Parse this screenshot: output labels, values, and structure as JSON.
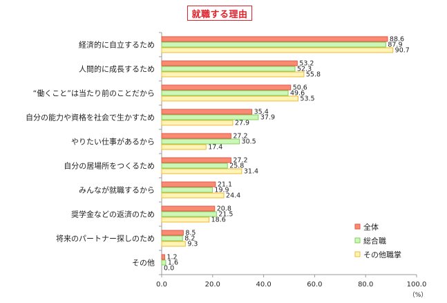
{
  "chart_data": {
    "type": "bar",
    "orientation": "horizontal",
    "title": "就職する理由",
    "categories": [
      "経済的に自立するため",
      "人間的に成長するため",
      "“働くこと”は当たり前のことだから",
      "自分の能力や資格を社会で生かすため",
      "やりたい仕事があるから",
      "自分の居場所をつくるため",
      "みんなが就職するから",
      "奨学金などの返済のため",
      "将来のパートナー探しのため",
      "その他"
    ],
    "series": [
      {
        "name": "全体",
        "values": [
          88.6,
          53.2,
          50.6,
          35.4,
          27.2,
          27.2,
          21.1,
          20.8,
          8.5,
          1.2
        ]
      },
      {
        "name": "総合職",
        "values": [
          87.9,
          52.3,
          49.6,
          37.9,
          30.5,
          25.8,
          19.9,
          21.5,
          8.2,
          1.6
        ]
      },
      {
        "name": "その他職掌",
        "values": [
          90.7,
          55.8,
          53.5,
          27.9,
          17.4,
          31.4,
          24.4,
          18.6,
          9.3,
          0.0
        ]
      }
    ],
    "x_ticks": [
      "0.0",
      "20.0",
      "40.0",
      "60.0",
      "80.0",
      "100.0"
    ],
    "xlim": [
      0,
      100
    ],
    "unit_label": "（%）",
    "legend_position": "bottom-right",
    "grid": false,
    "colors": {
      "series_fill": [
        "#f98a74",
        "#ccf7b8",
        "#fff4b8"
      ],
      "series_stroke": [
        "#e15a44",
        "#7fcf5d",
        "#f0b832"
      ],
      "axis": "#9a9a9a"
    }
  }
}
